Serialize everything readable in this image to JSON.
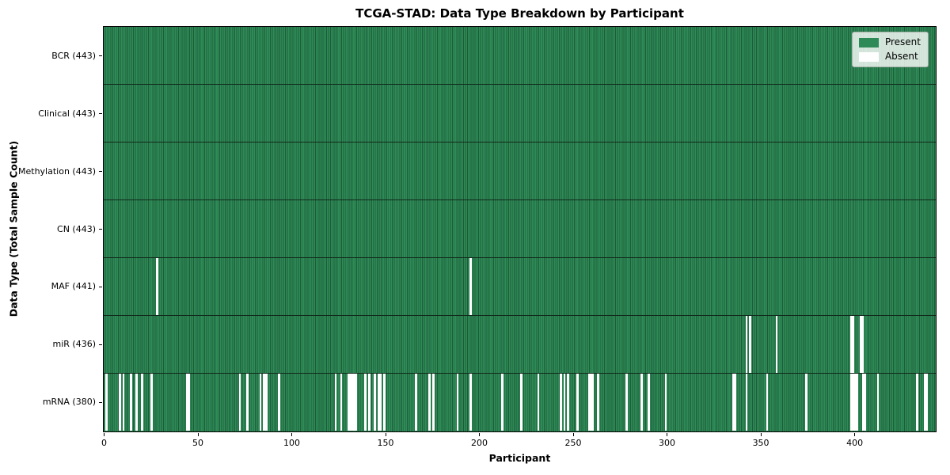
{
  "chart_data": {
    "type": "heatmap",
    "title": "TCGA-STAD: Data Type Breakdown by Participant",
    "xlabel": "Participant",
    "ylabel": "Data Type (Total Sample Count)",
    "x_ticks": [
      0,
      50,
      100,
      150,
      200,
      250,
      300,
      350,
      400
    ],
    "x_range": [
      0,
      443
    ],
    "n_participants": 443,
    "grid": "row-dividers-only",
    "colors": {
      "present": "#2e8b57",
      "present_cell_edge": "#1d5c3a",
      "absent": "#ffffff",
      "row_divider": "#11281a",
      "frame": "#000000"
    },
    "legend": {
      "position": "upper right",
      "entries": [
        {
          "label": "Present",
          "color": "#2e8b57"
        },
        {
          "label": "Absent",
          "color": "#ffffff"
        }
      ]
    },
    "rows": [
      {
        "label": "BCR (443)",
        "data_type": "BCR",
        "present_count": 443,
        "missing_participants": []
      },
      {
        "label": "Clinical (443)",
        "data_type": "Clinical",
        "present_count": 443,
        "missing_participants": []
      },
      {
        "label": "Methylation (443)",
        "data_type": "Methylation",
        "present_count": 443,
        "missing_participants": []
      },
      {
        "label": "CN (443)",
        "data_type": "CN",
        "present_count": 443,
        "missing_participants": []
      },
      {
        "label": "MAF (441)",
        "data_type": "MAF",
        "present_count": 441,
        "missing_participants": [
          28,
          195
        ]
      },
      {
        "label": "miR (436)",
        "data_type": "miR",
        "present_count": 436,
        "missing_participants": [
          342,
          344,
          358,
          398,
          399,
          403,
          404
        ]
      },
      {
        "label": "mRNA (380)",
        "data_type": "mRNA",
        "present_count": 380,
        "missing_participants": [
          1,
          8,
          10,
          14,
          17,
          20,
          25,
          44,
          45,
          72,
          76,
          83,
          85,
          86,
          93,
          123,
          126,
          130,
          131,
          132,
          133,
          134,
          139,
          141,
          144,
          146,
          147,
          149,
          166,
          173,
          175,
          188,
          195,
          212,
          222,
          231,
          243,
          245,
          247,
          252,
          258,
          259,
          260,
          263,
          278,
          286,
          290,
          299,
          335,
          336,
          342,
          353,
          374,
          398,
          399,
          400,
          401,
          404,
          405,
          412,
          433,
          437,
          438
        ]
      }
    ]
  }
}
